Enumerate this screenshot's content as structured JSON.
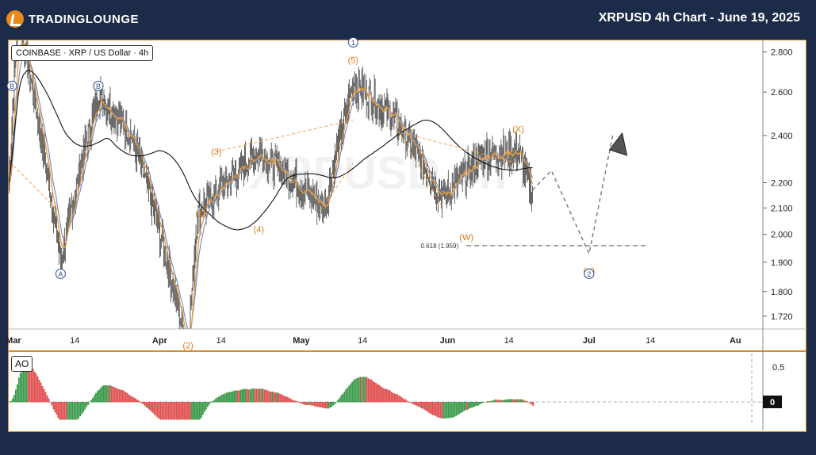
{
  "header": {
    "logo_text": "TRADINGLOUNGE",
    "title": "XRPUSD 4h Chart - June 19, 2025"
  },
  "symbol_label": "COINBASE · XRP / US Dollar · 4h",
  "watermark": "XRPUSD 4h",
  "colors": {
    "price": "#555555",
    "ema_fast": "#e89a3c",
    "ema_slow": "#6b86c4",
    "ma_long": "#111111",
    "orange_label": "#e07b10",
    "blue_label": "#2a4a8a",
    "ao_up": "#3a9a4a",
    "ao_down": "#e05050",
    "border": "#d48a2e"
  },
  "chart_data": [
    {
      "type": "candlestick",
      "title": "",
      "y_ticks": [
        "2.800",
        "2.600",
        "2.400",
        "2.200",
        "2.100",
        "2.000",
        "1.900",
        "1.800",
        "1.720"
      ],
      "x_ticks": [
        "Mar",
        "14",
        "Apr",
        "14",
        "May",
        "14",
        "Jun",
        "14",
        "Jul",
        "14",
        "Au"
      ],
      "y_scale": "log",
      "ylim": [
        1.68,
        2.86
      ],
      "grid": false,
      "key_points": [
        {
          "date": "2025-02-28",
          "price": 2.19
        },
        {
          "date": "2025-03-02",
          "price": 2.98
        },
        {
          "date": "2025-03-11",
          "price": 1.9
        },
        {
          "date": "2025-03-19",
          "price": 2.59
        },
        {
          "date": "2025-03-26",
          "price": 2.4
        },
        {
          "date": "2025-04-07",
          "price": 1.61
        },
        {
          "date": "2025-04-09",
          "price": 2.08
        },
        {
          "date": "2025-04-13",
          "price": 2.16
        },
        {
          "date": "2025-04-22",
          "price": 2.33
        },
        {
          "date": "2025-05-06",
          "price": 2.1
        },
        {
          "date": "2025-05-12",
          "price": 2.65
        },
        {
          "date": "2025-05-21",
          "price": 2.47
        },
        {
          "date": "2025-05-31",
          "price": 2.14
        },
        {
          "date": "2025-06-09",
          "price": 2.32
        },
        {
          "date": "2025-06-16",
          "price": 2.33
        },
        {
          "date": "2025-06-19",
          "price": 2.16
        }
      ],
      "projection": [
        {
          "date": "2025-06-19",
          "price": 2.17
        },
        {
          "date": "2025-06-23",
          "price": 2.25
        },
        {
          "date": "2025-07-01",
          "price": 1.93
        },
        {
          "date": "2025-07-06",
          "price": 2.4
        }
      ],
      "fib_level": {
        "label": "0.618 (1.959)",
        "price": 1.959
      },
      "wave_labels_orange": [
        {
          "text": "(1)",
          "date": "2025-04-09"
        },
        {
          "text": "(2)",
          "date": "2025-04-07"
        },
        {
          "text": "(3)",
          "date": "2025-04-13"
        },
        {
          "text": "(4)",
          "date": "2025-04-22"
        },
        {
          "text": "(5)",
          "date": "2025-05-12"
        },
        {
          "text": "(W)",
          "date": "2025-06-05"
        },
        {
          "text": "(X)",
          "date": "2025-06-16"
        },
        {
          "text": "(Y)",
          "date": "2025-07-01"
        }
      ],
      "wave_labels_blue": [
        {
          "text": "B",
          "date": "2025-02-28"
        },
        {
          "text": "A",
          "date": "2025-03-11"
        },
        {
          "text": "B",
          "date": "2025-03-19"
        },
        {
          "text": "1",
          "date": "2025-05-12"
        },
        {
          "text": "2",
          "date": "2025-07-01"
        }
      ]
    },
    {
      "type": "bar",
      "title": "AO",
      "y_ticks": [
        "0.5",
        "0"
      ],
      "series": [
        {
          "values": []
        }
      ]
    }
  ]
}
